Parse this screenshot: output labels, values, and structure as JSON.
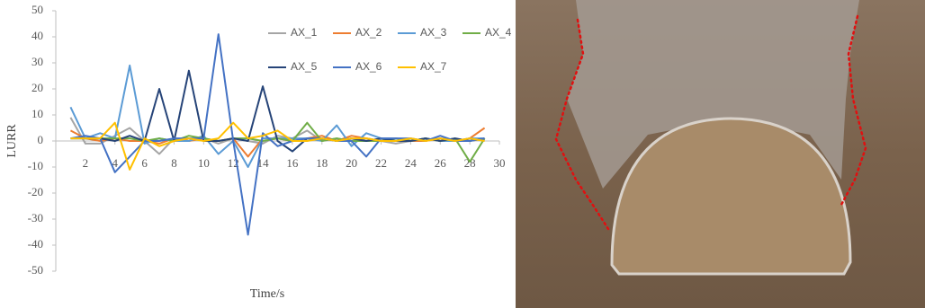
{
  "chart_data": {
    "type": "line",
    "x_label": "Time/s",
    "y_label": "LURR",
    "x": [
      1,
      2,
      3,
      4,
      5,
      6,
      7,
      8,
      9,
      10,
      11,
      12,
      13,
      14,
      15,
      16,
      17,
      18,
      19,
      20,
      21,
      22,
      23,
      24,
      25,
      26,
      27,
      28,
      29
    ],
    "xlim": [
      0,
      30
    ],
    "xticks": [
      2,
      4,
      6,
      8,
      10,
      12,
      14,
      16,
      18,
      20,
      22,
      24,
      26,
      28,
      30
    ],
    "ylim": [
      -50,
      50
    ],
    "yticks": [
      -50,
      -40,
      -30,
      -20,
      -10,
      0,
      10,
      20,
      30,
      40,
      50
    ],
    "grid": false,
    "legend": "upper right",
    "series": [
      {
        "name": "AX_1",
        "color": "#a5a5a5",
        "values": [
          9,
          -1,
          -1,
          2,
          5,
          0,
          -5,
          1,
          0,
          1,
          -1,
          1,
          0,
          -1,
          2,
          1,
          4,
          0,
          1,
          0,
          1,
          0,
          -1,
          0,
          1,
          0,
          0,
          1,
          0
        ]
      },
      {
        "name": "AX_2",
        "color": "#ed7d31",
        "values": [
          4,
          1,
          0,
          1,
          0,
          0,
          -1,
          1,
          0,
          1,
          0,
          1,
          -6,
          1,
          1,
          0,
          1,
          2,
          0,
          2,
          1,
          0,
          1,
          0,
          0,
          1,
          0,
          1,
          5
        ]
      },
      {
        "name": "AX_3",
        "color": "#5b9bd5",
        "values": [
          13,
          1,
          3,
          1,
          29,
          -1,
          1,
          0,
          0,
          2,
          -5,
          0,
          -10,
          1,
          1,
          1,
          1,
          0,
          6,
          -2,
          3,
          1,
          1,
          0,
          1,
          0,
          0,
          1,
          1
        ]
      },
      {
        "name": "AX_4",
        "color": "#70ad47",
        "values": [
          1,
          1,
          1,
          1,
          1,
          0,
          1,
          0,
          2,
          1,
          0,
          1,
          1,
          0,
          1,
          0,
          7,
          0,
          1,
          0,
          0,
          0,
          1,
          0,
          1,
          0,
          1,
          -8,
          1
        ]
      },
      {
        "name": "AX_5",
        "color": "#264478",
        "values": [
          1,
          1,
          1,
          0,
          2,
          0,
          20,
          0,
          27,
          0,
          0,
          1,
          0,
          21,
          0,
          -4,
          1,
          1,
          0,
          1,
          0,
          1,
          0,
          0,
          1,
          0,
          1,
          0,
          1
        ]
      },
      {
        "name": "AX_6",
        "color": "#4472c4",
        "values": [
          1,
          2,
          1,
          -12,
          -6,
          0,
          0,
          1,
          1,
          1,
          41,
          0,
          -36,
          3,
          -2,
          0,
          1,
          1,
          0,
          0,
          -6,
          1,
          1,
          1,
          0,
          2,
          0,
          0,
          1
        ]
      },
      {
        "name": "AX_7",
        "color": "#ffc000",
        "values": [
          1,
          1,
          1,
          7,
          -11,
          1,
          -2,
          0,
          1,
          0,
          1,
          7,
          1,
          2,
          4,
          0,
          0,
          1,
          0,
          1,
          1,
          0,
          0,
          1,
          0,
          1,
          0,
          1,
          0
        ]
      }
    ]
  }
}
